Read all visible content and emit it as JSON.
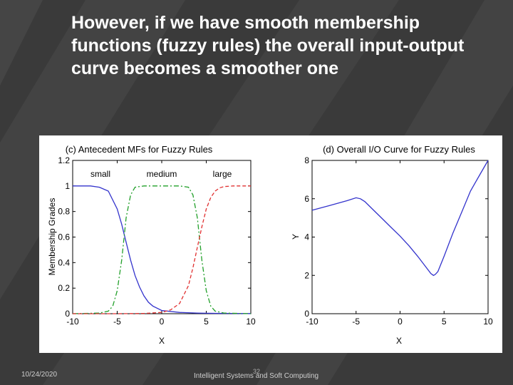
{
  "slide": {
    "title": "However, if we have smooth membership functions (fuzzy rules) the overall input-output curve becomes a smoother one",
    "footer_date": "10/24/2020",
    "footer_course": "Intelligent Systems and Soft Computing",
    "page_number": "32"
  },
  "colors": {
    "blue": "#3333cc",
    "green": "#22a02a",
    "red": "#e03030",
    "axis": "#000000"
  },
  "chart_data": [
    {
      "type": "line",
      "title": "(c) Antecedent MFs for Fuzzy Rules",
      "xlabel": "X",
      "ylabel": "Membership Grades",
      "xlim": [
        -10,
        10
      ],
      "ylim": [
        0,
        1.2
      ],
      "xticks": [
        -10,
        -5,
        0,
        5,
        10
      ],
      "yticks": [
        0,
        0.2,
        0.4,
        0.6,
        0.8,
        1,
        1.2
      ],
      "xtick_labels": [
        "-10",
        "-5",
        "0",
        "5",
        "10"
      ],
      "ytick_labels": [
        "0",
        "0.2",
        "0.4",
        "0.6",
        "0.8",
        "1",
        "1.2"
      ],
      "annotations": [
        {
          "text": "small",
          "x": -7.2,
          "y": 1.08
        },
        {
          "text": "medium",
          "x": 0,
          "y": 1.08
        },
        {
          "text": "large",
          "x": 7,
          "y": 1.08
        }
      ],
      "series": [
        {
          "name": "small",
          "style": "solid",
          "color": "blue",
          "x": [
            -10,
            -9,
            -8,
            -7,
            -6,
            -5,
            -4.5,
            -4,
            -3.5,
            -3,
            -2.5,
            -2,
            -1.5,
            -1,
            0,
            2,
            4,
            6,
            8,
            10
          ],
          "y": [
            1,
            1,
            1,
            0.99,
            0.96,
            0.82,
            0.7,
            0.56,
            0.42,
            0.3,
            0.21,
            0.14,
            0.09,
            0.06,
            0.025,
            0.01,
            0.005,
            0.003,
            0.002,
            0.001
          ]
        },
        {
          "name": "medium",
          "style": "dashdot",
          "color": "green",
          "x": [
            -10,
            -7,
            -6,
            -5.5,
            -5,
            -4.5,
            -4,
            -3.5,
            -3,
            -2,
            0,
            2,
            3,
            3.5,
            4,
            4.5,
            5,
            5.5,
            6,
            7,
            10
          ],
          "y": [
            0,
            0.005,
            0.02,
            0.06,
            0.18,
            0.42,
            0.75,
            0.93,
            0.99,
            1,
            1,
            1,
            0.99,
            0.93,
            0.75,
            0.42,
            0.18,
            0.06,
            0.02,
            0.005,
            0
          ]
        },
        {
          "name": "large",
          "style": "dashed",
          "color": "red",
          "x": [
            -10,
            -5,
            -2,
            0,
            1,
            2,
            3,
            3.5,
            4,
            4.5,
            5,
            5.5,
            6,
            6.5,
            7,
            8,
            10
          ],
          "y": [
            0,
            0,
            0.002,
            0.01,
            0.03,
            0.08,
            0.22,
            0.36,
            0.52,
            0.68,
            0.82,
            0.91,
            0.96,
            0.985,
            0.995,
            1,
            1
          ]
        }
      ]
    },
    {
      "type": "line",
      "title": "(d) Overall I/O Curve for Fuzzy Rules",
      "xlabel": "X",
      "ylabel": "Y",
      "xlim": [
        -10,
        10
      ],
      "ylim": [
        0,
        8
      ],
      "xticks": [
        -10,
        -5,
        0,
        5,
        10
      ],
      "yticks": [
        0,
        2,
        4,
        6,
        8
      ],
      "xtick_labels": [
        "-10",
        "-5",
        "0",
        "5",
        "10"
      ],
      "ytick_labels": [
        "0",
        "2",
        "4",
        "6",
        "8"
      ],
      "series": [
        {
          "name": "I/O curve",
          "style": "solid",
          "color": "blue",
          "x": [
            -10,
            -8,
            -6,
            -5,
            -4.5,
            -4,
            -3,
            -2,
            -1,
            0,
            1,
            2,
            3,
            3.5,
            3.8,
            4,
            4.3,
            5,
            6,
            7,
            8,
            9,
            10
          ],
          "y": [
            5.4,
            5.65,
            5.9,
            6.05,
            6.0,
            5.85,
            5.4,
            4.95,
            4.5,
            4.05,
            3.55,
            3.0,
            2.4,
            2.1,
            2.0,
            2.05,
            2.2,
            3.0,
            4.2,
            5.3,
            6.4,
            7.2,
            8.0
          ]
        }
      ]
    }
  ]
}
